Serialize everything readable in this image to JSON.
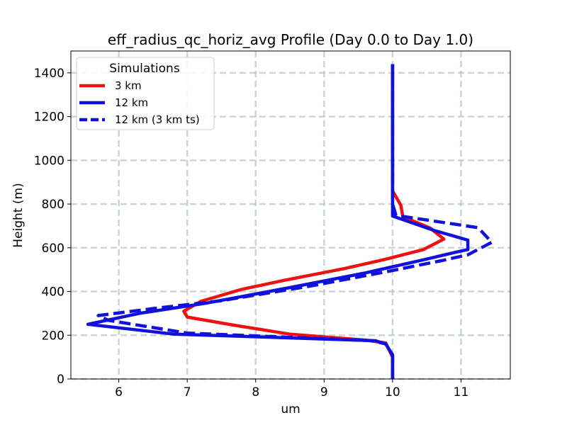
{
  "chart_data": {
    "type": "line",
    "title": "eff_radius_qc_horiz_avg Profile (Day 0.0 to Day 1.0)",
    "xlabel": "um",
    "ylabel": "Height (m)",
    "xlim": [
      5.3,
      11.72
    ],
    "ylim": [
      0,
      1500
    ],
    "xticks": [
      6,
      7,
      8,
      9,
      10,
      11
    ],
    "yticks": [
      0,
      200,
      400,
      600,
      800,
      1000,
      1200,
      1400
    ],
    "grid": true,
    "legend": {
      "title": "Simulations",
      "position": "upper left"
    },
    "series": [
      {
        "name": "3 km",
        "color": "#ee1111",
        "dash": "solid",
        "points": [
          [
            10.0,
            0
          ],
          [
            10.0,
            50
          ],
          [
            10.0,
            100
          ],
          [
            9.9,
            165
          ],
          [
            9.6,
            178
          ],
          [
            8.5,
            205
          ],
          [
            7.7,
            245
          ],
          [
            7.0,
            283
          ],
          [
            6.95,
            310
          ],
          [
            7.2,
            355
          ],
          [
            7.8,
            410
          ],
          [
            8.4,
            450
          ],
          [
            9.3,
            505
          ],
          [
            9.9,
            548
          ],
          [
            10.45,
            592
          ],
          [
            10.75,
            640
          ],
          [
            10.55,
            690
          ],
          [
            10.15,
            742
          ],
          [
            10.12,
            795
          ],
          [
            10.0,
            860
          ],
          [
            10.0,
            1000
          ],
          [
            10.0,
            1200
          ],
          [
            10.0,
            1440
          ]
        ]
      },
      {
        "name": "12 km",
        "color": "#1111dd",
        "dash": "solid",
        "points": [
          [
            10.0,
            0
          ],
          [
            10.0,
            50
          ],
          [
            10.0,
            110
          ],
          [
            9.9,
            160
          ],
          [
            9.75,
            175
          ],
          [
            6.8,
            205
          ],
          [
            5.55,
            250
          ],
          [
            6.3,
            300
          ],
          [
            7.3,
            348
          ],
          [
            8.5,
            418
          ],
          [
            9.6,
            485
          ],
          [
            10.45,
            545
          ],
          [
            10.9,
            578
          ],
          [
            11.1,
            592
          ],
          [
            11.1,
            635
          ],
          [
            10.6,
            680
          ],
          [
            10.0,
            745
          ],
          [
            10.0,
            800
          ],
          [
            10.0,
            1000
          ],
          [
            10.0,
            1200
          ],
          [
            10.0,
            1440
          ]
        ]
      },
      {
        "name": "12 km (3 km ts)",
        "color": "#1111dd",
        "dash": "dashed",
        "points": [
          [
            10.0,
            0
          ],
          [
            10.0,
            110
          ],
          [
            9.9,
            160
          ],
          [
            9.7,
            175
          ],
          [
            7.0,
            210
          ],
          [
            5.85,
            268
          ],
          [
            5.7,
            290
          ],
          [
            6.5,
            322
          ],
          [
            7.5,
            358
          ],
          [
            8.8,
            425
          ],
          [
            9.9,
            490
          ],
          [
            10.7,
            540
          ],
          [
            11.1,
            568
          ],
          [
            11.45,
            625
          ],
          [
            11.25,
            692
          ],
          [
            10.05,
            748
          ],
          [
            10.0,
            800
          ],
          [
            10.0,
            1000
          ],
          [
            10.0,
            1200
          ],
          [
            10.0,
            1440
          ]
        ]
      }
    ]
  }
}
